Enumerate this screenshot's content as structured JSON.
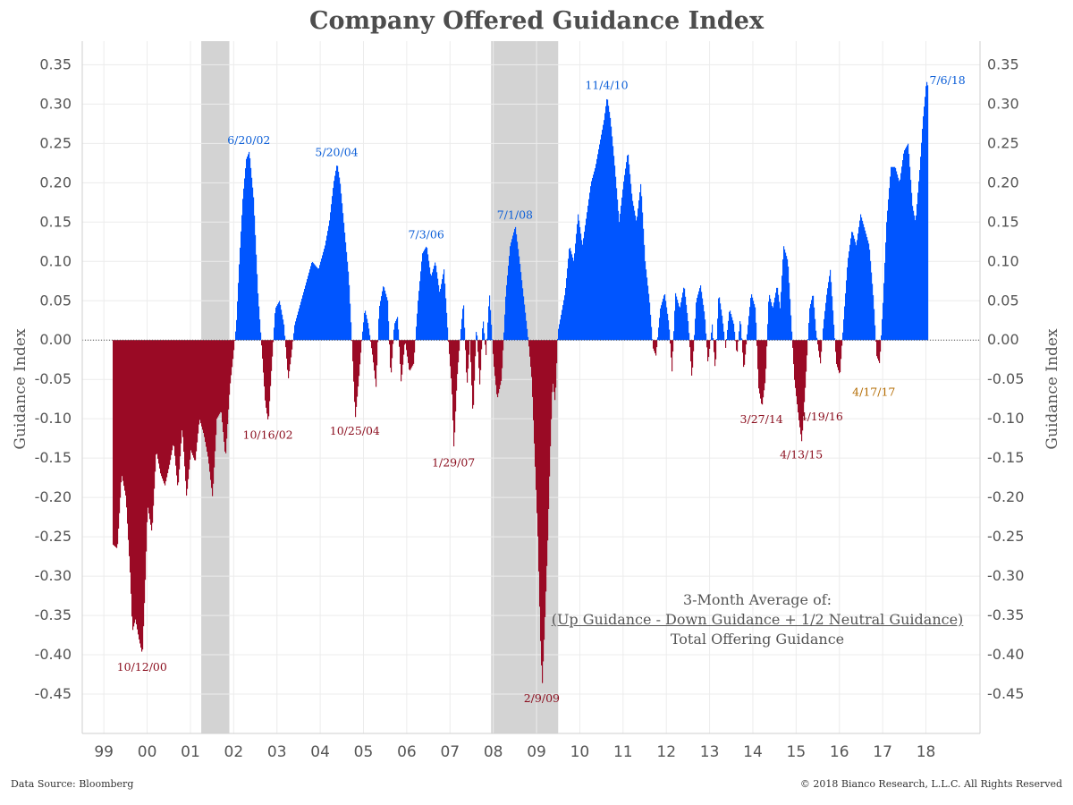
{
  "title": "Company Offered Guidance Index",
  "footer": {
    "source": "Data Source: Bloomberg",
    "copyright": "© 2018 Bianco Research, L.L.C. All Rights Reserved"
  },
  "formula": {
    "line1": "3-Month Average of:",
    "line2": "(Up Guidance - Down Guidance + 1/2 Neutral Guidance)",
    "line3": "Total Offering Guidance"
  },
  "colors": {
    "positive": "#0055ff",
    "negative": "#9a0a25",
    "recession": "#d3d3d3",
    "label_pos": "#0b5ed7",
    "label_neg": "#8b0e1e",
    "label_latest": "#b36b00"
  },
  "chart_data": {
    "type": "area",
    "title": "Company Offered Guidance Index",
    "ylabel_left": "Guidance Index",
    "ylabel_right": "Guidance Index",
    "ylim": [
      -0.5,
      0.38
    ],
    "xlim": [
      1998.5,
      2019.25
    ],
    "yticks": [
      0.35,
      0.3,
      0.25,
      0.2,
      0.15,
      0.1,
      0.05,
      0.0,
      -0.05,
      -0.1,
      -0.15,
      -0.2,
      -0.25,
      -0.3,
      -0.35,
      -0.4,
      -0.45
    ],
    "ytick_labels": [
      "0.35",
      "0.30",
      "0.25",
      "0.20",
      "0.15",
      "0.10",
      "0.05",
      "0.00",
      "-0.05",
      "-0.10",
      "-0.15",
      "-0.20",
      "-0.25",
      "-0.30",
      "-0.35",
      "-0.40",
      "-0.45"
    ],
    "xticks": [
      1999,
      2000,
      2001,
      2002,
      2003,
      2004,
      2005,
      2006,
      2007,
      2008,
      2009,
      2010,
      2011,
      2012,
      2013,
      2014,
      2015,
      2016,
      2017,
      2018
    ],
    "xtick_labels": [
      "99",
      "00",
      "01",
      "02",
      "03",
      "04",
      "05",
      "06",
      "07",
      "08",
      "09",
      "10",
      "11",
      "12",
      "13",
      "14",
      "15",
      "16",
      "17",
      "18"
    ],
    "recessions": [
      [
        2001.25,
        2001.9
      ],
      [
        2007.95,
        2009.5
      ]
    ],
    "series": [
      {
        "name": "Guidance Index",
        "points": [
          [
            1999.2,
            -0.26
          ],
          [
            1999.3,
            -0.265
          ],
          [
            1999.4,
            -0.17
          ],
          [
            1999.5,
            -0.2
          ],
          [
            1999.6,
            -0.3
          ],
          [
            1999.65,
            -0.37
          ],
          [
            1999.72,
            -0.355
          ],
          [
            1999.8,
            -0.38
          ],
          [
            1999.88,
            -0.4
          ],
          [
            1999.95,
            -0.3
          ],
          [
            2000.0,
            -0.21
          ],
          [
            2000.1,
            -0.245
          ],
          [
            2000.2,
            -0.14
          ],
          [
            2000.3,
            -0.17
          ],
          [
            2000.4,
            -0.185
          ],
          [
            2000.5,
            -0.16
          ],
          [
            2000.6,
            -0.13
          ],
          [
            2000.7,
            -0.19
          ],
          [
            2000.8,
            -0.11
          ],
          [
            2000.9,
            -0.2
          ],
          [
            2001.0,
            -0.14
          ],
          [
            2001.1,
            -0.155
          ],
          [
            2001.2,
            -0.1
          ],
          [
            2001.3,
            -0.12
          ],
          [
            2001.4,
            -0.15
          ],
          [
            2001.5,
            -0.2
          ],
          [
            2001.6,
            -0.1
          ],
          [
            2001.7,
            -0.09
          ],
          [
            2001.8,
            -0.15
          ],
          [
            2001.9,
            -0.06
          ],
          [
            2001.98,
            -0.02
          ],
          [
            2002.05,
            0.02
          ],
          [
            2002.12,
            0.1
          ],
          [
            2002.2,
            0.18
          ],
          [
            2002.28,
            0.23
          ],
          [
            2002.35,
            0.24
          ],
          [
            2002.45,
            0.18
          ],
          [
            2002.55,
            0.06
          ],
          [
            2002.65,
            -0.02
          ],
          [
            2002.72,
            -0.08
          ],
          [
            2002.79,
            -0.105
          ],
          [
            2002.86,
            -0.04
          ],
          [
            2002.95,
            0.04
          ],
          [
            2003.05,
            0.05
          ],
          [
            2003.15,
            0.02
          ],
          [
            2003.25,
            -0.05
          ],
          [
            2003.32,
            -0.02
          ],
          [
            2003.4,
            0.02
          ],
          [
            2003.5,
            0.04
          ],
          [
            2003.6,
            0.06
          ],
          [
            2003.7,
            0.08
          ],
          [
            2003.8,
            0.1
          ],
          [
            2003.95,
            0.09
          ],
          [
            2004.1,
            0.12
          ],
          [
            2004.2,
            0.15
          ],
          [
            2004.3,
            0.2
          ],
          [
            2004.38,
            0.225
          ],
          [
            2004.45,
            0.2
          ],
          [
            2004.55,
            0.14
          ],
          [
            2004.65,
            0.08
          ],
          [
            2004.72,
            0.0
          ],
          [
            2004.8,
            -0.1
          ],
          [
            2004.88,
            -0.05
          ],
          [
            2004.95,
            0.0
          ],
          [
            2005.02,
            0.04
          ],
          [
            2005.1,
            0.02
          ],
          [
            2005.2,
            -0.02
          ],
          [
            2005.28,
            -0.06
          ],
          [
            2005.35,
            0.04
          ],
          [
            2005.45,
            0.07
          ],
          [
            2005.55,
            0.05
          ],
          [
            2005.62,
            -0.05
          ],
          [
            2005.7,
            0.02
          ],
          [
            2005.78,
            0.03
          ],
          [
            2005.86,
            -0.055
          ],
          [
            2005.95,
            0.0
          ],
          [
            2006.05,
            -0.04
          ],
          [
            2006.15,
            -0.03
          ],
          [
            2006.25,
            0.05
          ],
          [
            2006.35,
            0.11
          ],
          [
            2006.45,
            0.12
          ],
          [
            2006.55,
            0.08
          ],
          [
            2006.65,
            0.1
          ],
          [
            2006.75,
            0.06
          ],
          [
            2006.85,
            0.09
          ],
          [
            2006.95,
            0.0
          ],
          [
            2007.03,
            -0.06
          ],
          [
            2007.08,
            -0.14
          ],
          [
            2007.15,
            -0.05
          ],
          [
            2007.22,
            0.0
          ],
          [
            2007.3,
            0.05
          ],
          [
            2007.38,
            -0.06
          ],
          [
            2007.45,
            0.0
          ],
          [
            2007.52,
            -0.1
          ],
          [
            2007.6,
            0.02
          ],
          [
            2007.68,
            -0.06
          ],
          [
            2007.75,
            0.03
          ],
          [
            2007.82,
            -0.02
          ],
          [
            2007.9,
            0.06
          ],
          [
            2008.0,
            -0.03
          ],
          [
            2008.08,
            -0.075
          ],
          [
            2008.18,
            -0.05
          ],
          [
            2008.28,
            0.06
          ],
          [
            2008.38,
            0.12
          ],
          [
            2008.5,
            0.145
          ],
          [
            2008.6,
            0.1
          ],
          [
            2008.7,
            0.05
          ],
          [
            2008.8,
            0.0
          ],
          [
            2008.88,
            -0.05
          ],
          [
            2008.95,
            -0.15
          ],
          [
            2009.02,
            -0.25
          ],
          [
            2009.08,
            -0.38
          ],
          [
            2009.12,
            -0.44
          ],
          [
            2009.18,
            -0.36
          ],
          [
            2009.25,
            -0.25
          ],
          [
            2009.3,
            -0.15
          ],
          [
            2009.36,
            -0.05
          ],
          [
            2009.42,
            -0.08
          ],
          [
            2009.48,
            0.01
          ],
          [
            2009.55,
            0.03
          ],
          [
            2009.65,
            0.06
          ],
          [
            2009.75,
            0.12
          ],
          [
            2009.85,
            0.1
          ],
          [
            2009.95,
            0.16
          ],
          [
            2010.05,
            0.12
          ],
          [
            2010.15,
            0.16
          ],
          [
            2010.25,
            0.2
          ],
          [
            2010.35,
            0.22
          ],
          [
            2010.45,
            0.25
          ],
          [
            2010.55,
            0.28
          ],
          [
            2010.62,
            0.31
          ],
          [
            2010.7,
            0.28
          ],
          [
            2010.8,
            0.22
          ],
          [
            2010.9,
            0.15
          ],
          [
            2011.0,
            0.2
          ],
          [
            2011.1,
            0.24
          ],
          [
            2011.2,
            0.18
          ],
          [
            2011.3,
            0.15
          ],
          [
            2011.4,
            0.2
          ],
          [
            2011.5,
            0.1
          ],
          [
            2011.6,
            0.05
          ],
          [
            2011.68,
            -0.01
          ],
          [
            2011.75,
            -0.02
          ],
          [
            2011.85,
            0.04
          ],
          [
            2011.95,
            0.06
          ],
          [
            2012.05,
            0.02
          ],
          [
            2012.12,
            -0.04
          ],
          [
            2012.2,
            0.06
          ],
          [
            2012.3,
            0.04
          ],
          [
            2012.4,
            0.07
          ],
          [
            2012.5,
            0.02
          ],
          [
            2012.58,
            -0.05
          ],
          [
            2012.68,
            0.05
          ],
          [
            2012.78,
            0.07
          ],
          [
            2012.88,
            0.03
          ],
          [
            2012.95,
            -0.03
          ],
          [
            2013.05,
            0.02
          ],
          [
            2013.12,
            -0.04
          ],
          [
            2013.2,
            0.06
          ],
          [
            2013.28,
            0.03
          ],
          [
            2013.36,
            -0.01
          ],
          [
            2013.45,
            0.04
          ],
          [
            2013.55,
            0.02
          ],
          [
            2013.62,
            -0.02
          ],
          [
            2013.7,
            0.03
          ],
          [
            2013.78,
            -0.04
          ],
          [
            2013.86,
            0.01
          ],
          [
            2013.95,
            0.06
          ],
          [
            2014.05,
            0.04
          ],
          [
            2014.12,
            -0.06
          ],
          [
            2014.2,
            -0.085
          ],
          [
            2014.28,
            -0.05
          ],
          [
            2014.36,
            0.06
          ],
          [
            2014.45,
            0.04
          ],
          [
            2014.55,
            0.07
          ],
          [
            2014.62,
            0.04
          ],
          [
            2014.7,
            0.12
          ],
          [
            2014.8,
            0.1
          ],
          [
            2014.88,
            0.02
          ],
          [
            2014.95,
            -0.05
          ],
          [
            2015.05,
            -0.1
          ],
          [
            2015.12,
            -0.13
          ],
          [
            2015.2,
            -0.06
          ],
          [
            2015.3,
            0.04
          ],
          [
            2015.38,
            0.06
          ],
          [
            2015.45,
            0.01
          ],
          [
            2015.55,
            -0.03
          ],
          [
            2015.62,
            0.02
          ],
          [
            2015.7,
            0.06
          ],
          [
            2015.78,
            0.09
          ],
          [
            2015.86,
            0.02
          ],
          [
            2015.92,
            -0.03
          ],
          [
            2016.0,
            -0.045
          ],
          [
            2016.08,
            0.02
          ],
          [
            2016.18,
            0.1
          ],
          [
            2016.28,
            0.14
          ],
          [
            2016.38,
            0.12
          ],
          [
            2016.48,
            0.16
          ],
          [
            2016.58,
            0.14
          ],
          [
            2016.68,
            0.12
          ],
          [
            2016.78,
            0.05
          ],
          [
            2016.85,
            -0.02
          ],
          [
            2016.92,
            -0.03
          ],
          [
            2017.0,
            0.05
          ],
          [
            2017.08,
            0.15
          ],
          [
            2017.18,
            0.22
          ],
          [
            2017.28,
            0.22
          ],
          [
            2017.38,
            0.2
          ],
          [
            2017.48,
            0.24
          ],
          [
            2017.58,
            0.25
          ],
          [
            2017.68,
            0.17
          ],
          [
            2017.75,
            0.15
          ],
          [
            2017.85,
            0.22
          ],
          [
            2017.92,
            0.28
          ],
          [
            2017.97,
            0.31
          ],
          [
            2018.0,
            0.33
          ],
          [
            2018.05,
            0.32
          ]
        ]
      }
    ],
    "annotations": [
      {
        "label": "10/12/00",
        "x": 1999.88,
        "y": -0.4,
        "kind": "neg"
      },
      {
        "label": "6/20/02",
        "x": 2002.35,
        "y": 0.24,
        "kind": "pos"
      },
      {
        "label": "10/16/02",
        "x": 2002.79,
        "y": -0.105,
        "kind": "neg"
      },
      {
        "label": "5/20/04",
        "x": 2004.38,
        "y": 0.225,
        "kind": "pos"
      },
      {
        "label": "10/25/04",
        "x": 2004.8,
        "y": -0.1,
        "kind": "neg"
      },
      {
        "label": "7/3/06",
        "x": 2006.45,
        "y": 0.12,
        "kind": "pos"
      },
      {
        "label": "1/29/07",
        "x": 2007.08,
        "y": -0.14,
        "kind": "neg"
      },
      {
        "label": "7/1/08",
        "x": 2008.5,
        "y": 0.145,
        "kind": "pos"
      },
      {
        "label": "2/9/09",
        "x": 2009.12,
        "y": -0.44,
        "kind": "neg"
      },
      {
        "label": "11/4/10",
        "x": 2010.62,
        "y": 0.31,
        "kind": "pos"
      },
      {
        "label": "3/27/14",
        "x": 2014.2,
        "y": -0.085,
        "kind": "neg"
      },
      {
        "label": "4/13/15",
        "x": 2015.12,
        "y": -0.13,
        "kind": "neg"
      },
      {
        "label": "4/19/16",
        "x": 2016.0,
        "y": -0.045,
        "kind": "neg"
      },
      {
        "label": "4/17/17",
        "x": 2016.92,
        "y": -0.03,
        "kind": "latest"
      },
      {
        "label": "7/6/18",
        "x": 2018.0,
        "y": 0.33,
        "kind": "pos"
      }
    ]
  }
}
